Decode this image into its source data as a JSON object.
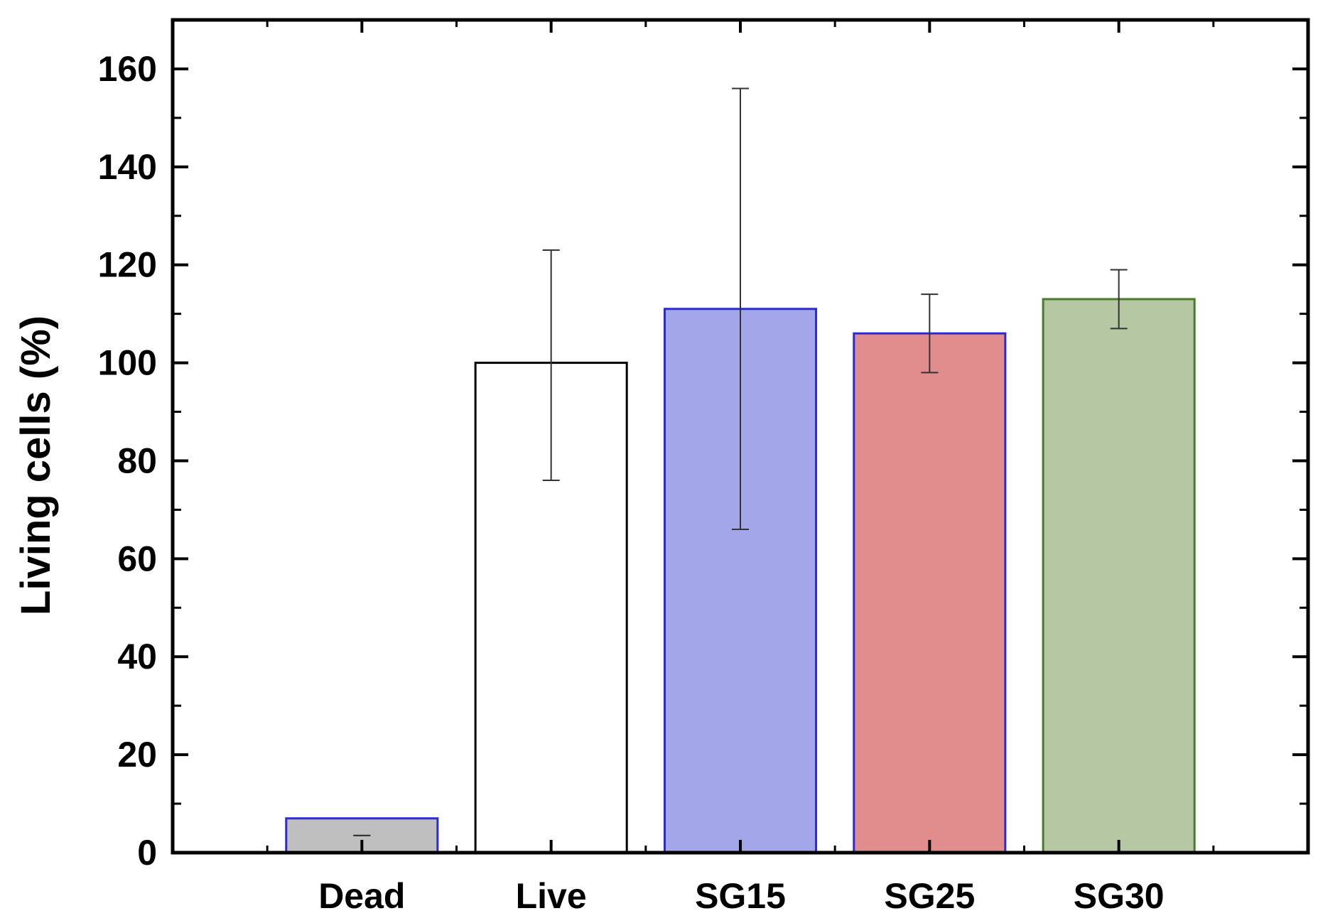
{
  "chart_data": {
    "type": "bar",
    "title": "",
    "xlabel": "",
    "ylabel": "Living cells (%)",
    "ylim": [
      0,
      170
    ],
    "yticks": [
      0,
      20,
      40,
      60,
      80,
      100,
      120,
      140,
      160
    ],
    "ytick_labels": [
      "0",
      "20",
      "40",
      "60",
      "80",
      "100",
      "120",
      "140",
      "160"
    ],
    "minor_step": 10,
    "xlim": [
      0,
      6
    ],
    "categories": [
      "Dead",
      "Live",
      "SG15",
      "SG25",
      "SG30"
    ],
    "positions": [
      1,
      2,
      3,
      4,
      5
    ],
    "values": [
      7,
      100,
      111,
      106,
      113
    ],
    "errors_low": [
      3.5,
      76,
      66,
      98,
      107
    ],
    "errors_high": [
      3.5,
      123,
      156,
      114,
      119
    ],
    "fills": [
      "#c0bfbf",
      "#ffffff",
      "#a3a6e8",
      "#e28d8d",
      "#b5c7a3"
    ],
    "edges": [
      "#2b2bd6",
      "#000000",
      "#2b2bd6",
      "#2b2bd6",
      "#4a7a2e"
    ],
    "grid": false,
    "legend": "none"
  }
}
